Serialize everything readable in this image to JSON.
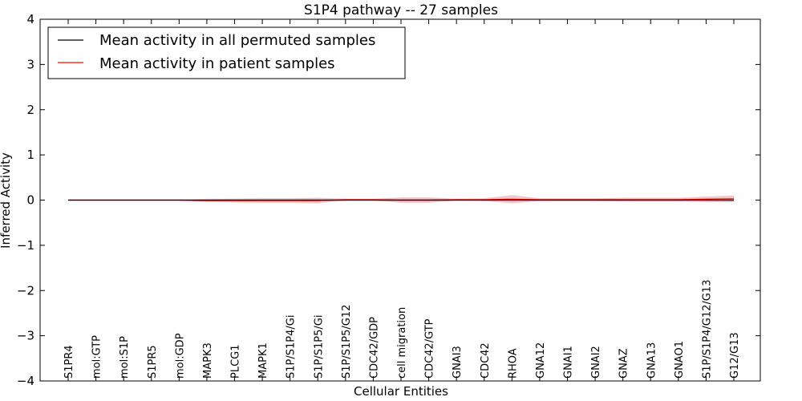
{
  "chart_data": {
    "type": "line",
    "title": "S1P4 pathway -- 27 samples",
    "xlabel": "Cellular Entities",
    "ylabel": "Inferred Activity",
    "ylim": [
      -4,
      4
    ],
    "yticks": [
      -4,
      -3,
      -2,
      -1,
      0,
      1,
      2,
      3,
      4
    ],
    "ytick_labels": [
      "−4",
      "−3",
      "−2",
      "−1",
      "0",
      "1",
      "2",
      "3",
      "4"
    ],
    "grid": false,
    "legend_position": "top-left",
    "categories": [
      "S1PR4",
      "mol:GTP",
      "mol:S1P",
      "S1PR5",
      "mol:GDP",
      "MAPK3",
      "PLCG1",
      "MAPK1",
      "S1P/S1P4/Gi",
      "S1P/S1P5/Gi",
      "S1P/S1P5/G12",
      "CDC42/GDP",
      "cell migration",
      "CDC42/GTP",
      "GNAI3",
      "CDC42",
      "RHOA",
      "GNA12",
      "GNAI1",
      "GNAI2",
      "GNAZ",
      "GNA13",
      "GNAO1",
      "S1P/S1P4/G12/G13",
      "G12/G13"
    ],
    "series": [
      {
        "name": "Mean activity in all permuted samples",
        "color": "#000000",
        "band_color": "#8a8ab0",
        "values": [
          0,
          0,
          0,
          0,
          0,
          0,
          0,
          0,
          0,
          0,
          0,
          0,
          0,
          0,
          0,
          0,
          0,
          0,
          0,
          0,
          0,
          0,
          0,
          0,
          0
        ],
        "spread": [
          0.01,
          0.01,
          0.01,
          0.01,
          0.01,
          0.03,
          0.03,
          0.03,
          0.03,
          0.03,
          0.02,
          0.02,
          0.03,
          0.03,
          0.02,
          0.02,
          0.03,
          0.03,
          0.03,
          0.03,
          0.03,
          0.03,
          0.03,
          0.04,
          0.04
        ]
      },
      {
        "name": "Mean activity in patient samples",
        "color": "#ff0000",
        "band_color": "#e06060",
        "values": [
          0,
          0,
          0,
          0,
          0,
          -0.01,
          -0.01,
          -0.01,
          -0.01,
          -0.01,
          0.01,
          0.01,
          0.0,
          0.0,
          0.01,
          0.01,
          0.02,
          0.01,
          0.01,
          0.01,
          0.01,
          0.01,
          0.01,
          0.02,
          0.03
        ],
        "spread": [
          0.01,
          0.01,
          0.01,
          0.01,
          0.01,
          0.03,
          0.04,
          0.05,
          0.05,
          0.06,
          0.02,
          0.02,
          0.06,
          0.06,
          0.02,
          0.03,
          0.09,
          0.03,
          0.03,
          0.03,
          0.04,
          0.04,
          0.04,
          0.06,
          0.07
        ]
      }
    ]
  }
}
